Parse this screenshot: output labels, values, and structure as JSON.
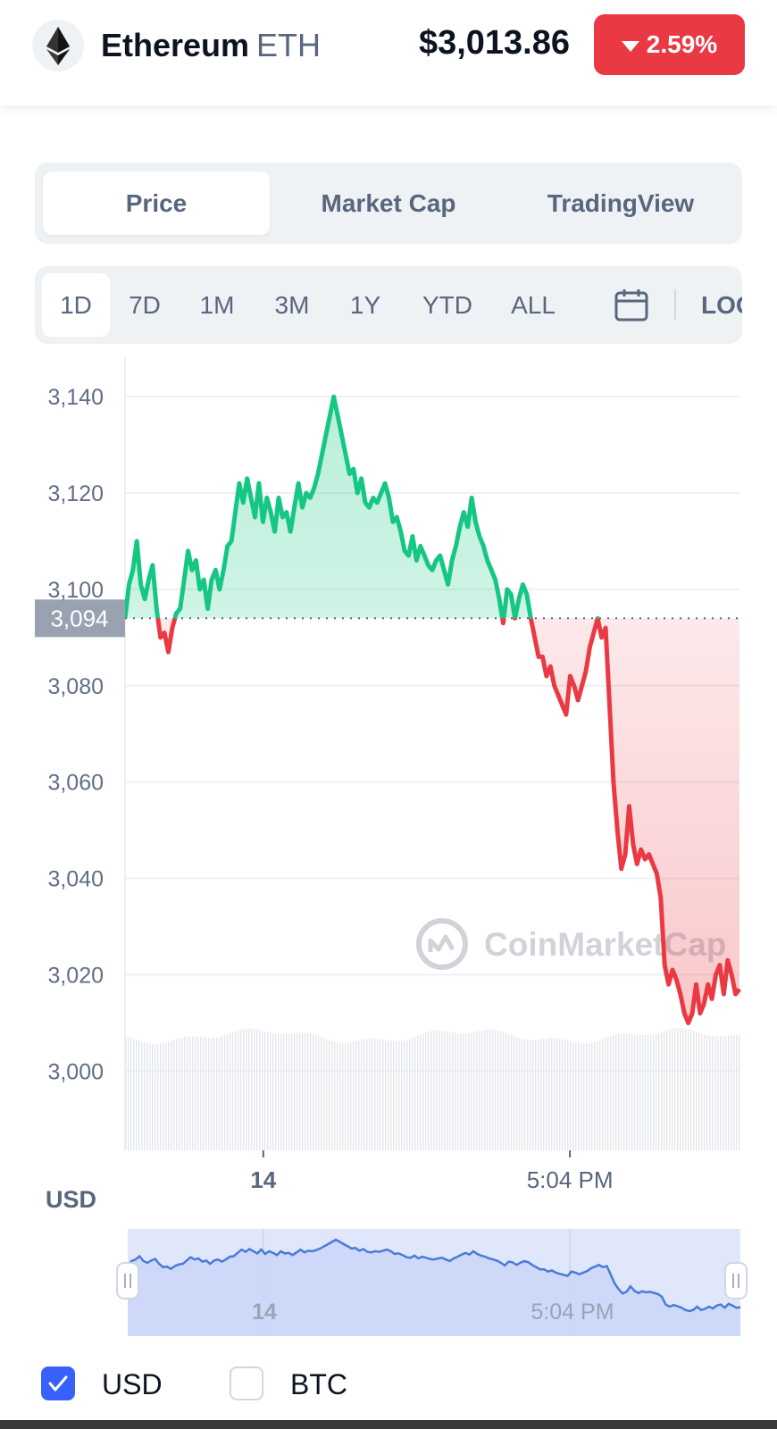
{
  "header": {
    "coin_name": "Ethereum",
    "coin_symbol": "ETH",
    "price": "$3,013.86",
    "change": "2.59%",
    "change_color": "#ea3943",
    "logo_icon": "ethereum-logo-icon"
  },
  "tabs": [
    {
      "label": "Price",
      "active": true
    },
    {
      "label": "Market Cap",
      "active": false
    },
    {
      "label": "TradingView",
      "active": false
    }
  ],
  "ranges": [
    {
      "label": "1D",
      "active": true
    },
    {
      "label": "7D",
      "active": false
    },
    {
      "label": "1M",
      "active": false
    },
    {
      "label": "3M",
      "active": false
    },
    {
      "label": "1Y",
      "active": false
    },
    {
      "label": "YTD",
      "active": false
    },
    {
      "label": "ALL",
      "active": false
    }
  ],
  "range_calendar_icon": "calendar-icon",
  "log_label": "LOG",
  "watermark": "CoinMarketCap",
  "chart_data": {
    "type": "area",
    "currency_label": "USD",
    "ylim": [
      2983,
      3148
    ],
    "yticks": [
      3000,
      3020,
      3040,
      3060,
      3080,
      3100,
      3120,
      3140
    ],
    "ytick_labels": [
      "3,000",
      "3,020",
      "3,040",
      "3,060",
      "3,080",
      "3,100",
      "3,120",
      "3,140"
    ],
    "xticks": [
      {
        "label": "14",
        "position": 0.225
      },
      {
        "label": "5:04 PM",
        "position": 0.724
      }
    ],
    "reference": {
      "value": 3094,
      "label": "3,094"
    },
    "up_color": "#16c784",
    "down_color": "#ea3943",
    "grid": true,
    "price": [
      3094,
      3101,
      3104,
      3110,
      3101,
      3098,
      3102,
      3105,
      3096,
      3090,
      3091,
      3087,
      3092,
      3095,
      3096,
      3102,
      3108,
      3104,
      3106,
      3100,
      3102,
      3096,
      3102,
      3104,
      3100,
      3104,
      3109,
      3110,
      3116,
      3122,
      3118,
      3123,
      3119,
      3115,
      3122,
      3114,
      3119,
      3116,
      3112,
      3119,
      3115,
      3116,
      3112,
      3117,
      3122,
      3117,
      3120,
      3119,
      3121,
      3124,
      3128,
      3132,
      3136,
      3140,
      3136,
      3132,
      3128,
      3124,
      3125,
      3120,
      3123,
      3118,
      3117,
      3119,
      3118,
      3120,
      3122,
      3119,
      3114,
      3115,
      3112,
      3108,
      3107,
      3111,
      3106,
      3109,
      3107,
      3105,
      3104,
      3106,
      3107,
      3104,
      3101,
      3106,
      3109,
      3113,
      3116,
      3113,
      3119,
      3114,
      3111,
      3109,
      3106,
      3104,
      3102,
      3098,
      3093,
      3100,
      3099,
      3094,
      3098,
      3101,
      3099,
      3094,
      3090,
      3086,
      3086,
      3082,
      3084,
      3080,
      3078,
      3076,
      3074,
      3082,
      3080,
      3077,
      3080,
      3083,
      3088,
      3091,
      3094,
      3090,
      3092,
      3076,
      3060,
      3050,
      3042,
      3045,
      3055,
      3047,
      3043,
      3046,
      3044,
      3045,
      3043,
      3041,
      3036,
      3022,
      3018,
      3021,
      3019,
      3016,
      3012,
      3010,
      3012,
      3018,
      3012,
      3014,
      3018,
      3015,
      3020,
      3022,
      3016,
      3023,
      3020,
      3016,
      3017
    ]
  },
  "navigator": {
    "xtick_labels": [
      "14",
      "5:04 PM"
    ]
  },
  "legend": [
    {
      "label": "USD",
      "checked": true
    },
    {
      "label": "BTC",
      "checked": false
    }
  ]
}
